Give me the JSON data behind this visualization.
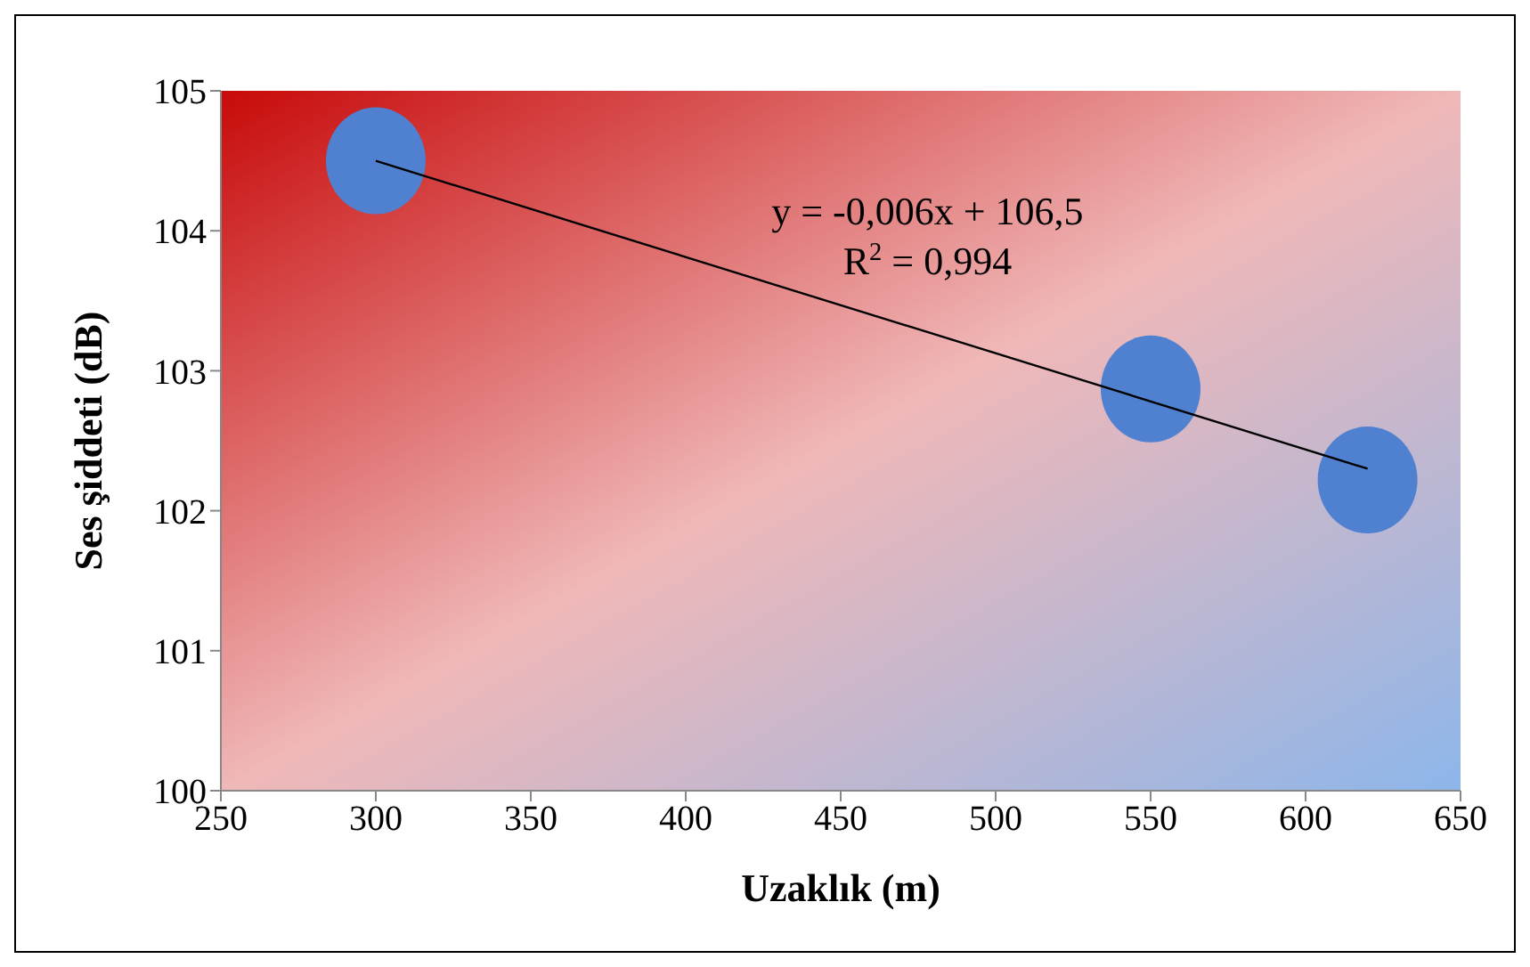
{
  "chart_data": {
    "type": "scatter",
    "xlabel": "Uzaklık (m)",
    "ylabel": "Ses şiddeti (dB)",
    "xlim": [
      250,
      650
    ],
    "xticks": [
      250,
      300,
      350,
      400,
      450,
      500,
      550,
      600,
      650
    ],
    "ylim": [
      100,
      105
    ],
    "yticks": [
      100,
      101,
      102,
      103,
      104,
      105
    ],
    "annotations": [
      "y = -0,006x + 106,5",
      "R$^{2}$ = 0,994"
    ],
    "series": [
      {
        "marker": "circle",
        "color": "#4f81d0",
        "x": [
          300,
          550,
          620
        ],
        "values": [
          104.5,
          102.87,
          102.22
        ]
      },
      {
        "type": "line",
        "marker": "none",
        "color": "#000000",
        "x": [
          300,
          620
        ],
        "values": [
          104.5,
          102.3
        ]
      }
    ]
  }
}
